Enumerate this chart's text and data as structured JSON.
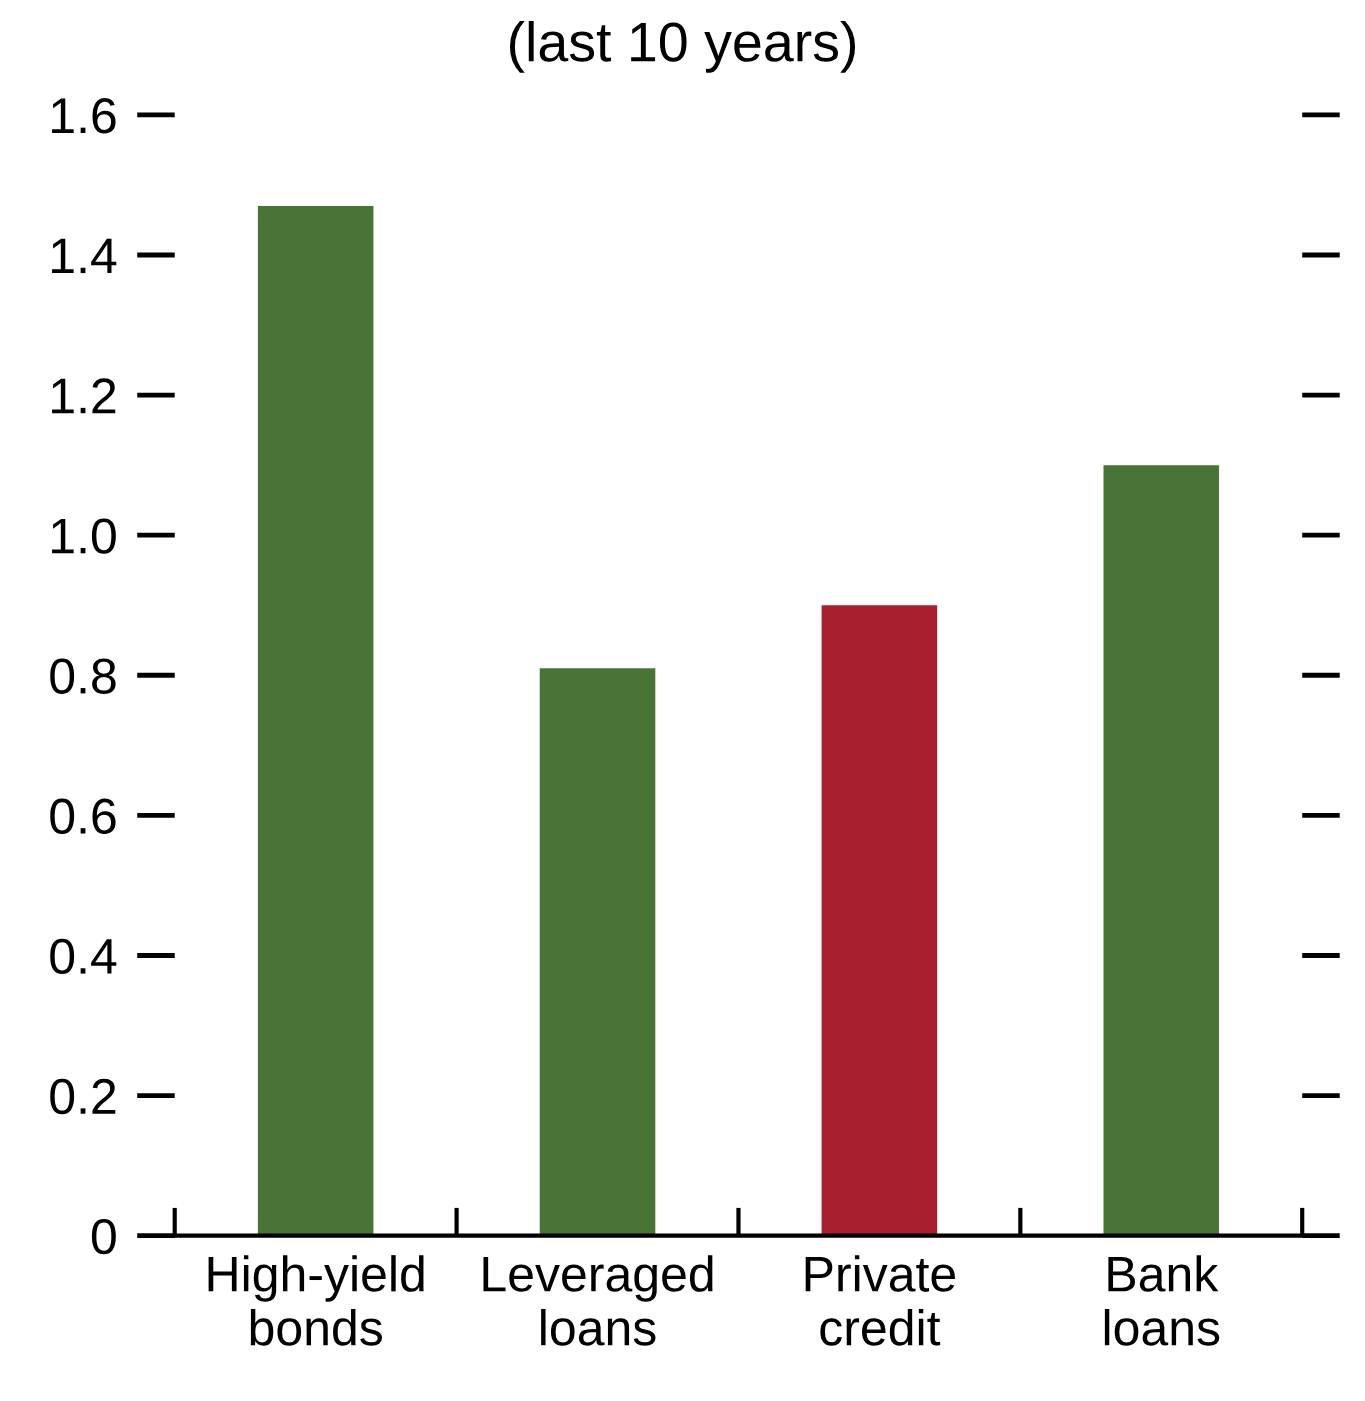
{
  "chart_data": {
    "type": "bar",
    "title": "(last 10 years)",
    "categories": [
      "High-yield\nbonds",
      "Leveraged\nloans",
      "Private\ncredit",
      "Bank\nloans"
    ],
    "values": [
      1.47,
      0.81,
      0.9,
      1.1
    ],
    "colors": [
      "#4a7436",
      "#4a7436",
      "#a81f2f",
      "#4a7436"
    ],
    "ylim": [
      0,
      1.6
    ],
    "yticks": [
      0,
      0.2,
      0.4,
      0.6,
      0.8,
      {
        "value": 1,
        "label": "1.0"
      },
      1.2,
      1.4,
      1.6
    ],
    "grid": false,
    "legend": false
  }
}
